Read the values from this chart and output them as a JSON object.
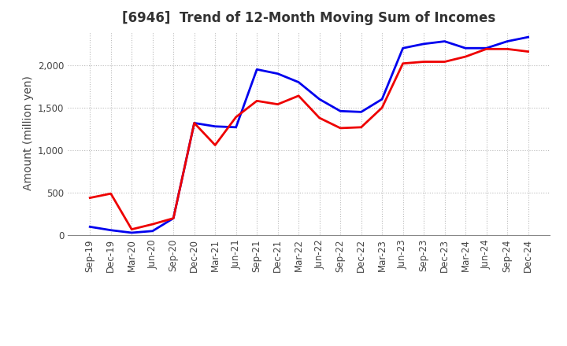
{
  "title": "[6946]  Trend of 12-Month Moving Sum of Incomes",
  "ylabel": "Amount (million yen)",
  "x_labels": [
    "Sep-19",
    "Dec-19",
    "Mar-20",
    "Jun-20",
    "Sep-20",
    "Dec-20",
    "Mar-21",
    "Jun-21",
    "Sep-21",
    "Dec-21",
    "Mar-22",
    "Jun-22",
    "Sep-22",
    "Dec-22",
    "Mar-23",
    "Jun-23",
    "Sep-23",
    "Dec-23",
    "Mar-24",
    "Jun-24",
    "Sep-24",
    "Dec-24"
  ],
  "ordinary_income": [
    100,
    60,
    30,
    50,
    200,
    1320,
    1280,
    1270,
    1950,
    1900,
    1800,
    1600,
    1460,
    1450,
    1600,
    2200,
    2250,
    2280,
    2200,
    2200,
    2280,
    2330
  ],
  "net_income": [
    440,
    490,
    70,
    130,
    200,
    1320,
    1060,
    1390,
    1580,
    1540,
    1640,
    1380,
    1260,
    1270,
    1500,
    2020,
    2040,
    2040,
    2100,
    2190,
    2190,
    2160
  ],
  "ordinary_color": "#0000EE",
  "net_color": "#EE0000",
  "line_width": 2.0,
  "ylim": [
    0,
    2400
  ],
  "yticks": [
    0,
    500,
    1000,
    1500,
    2000
  ],
  "background_color": "#FFFFFF",
  "grid_color": "#BBBBBB",
  "title_fontsize": 12,
  "title_color": "#333333",
  "axis_label_fontsize": 10,
  "tick_fontsize": 8.5,
  "legend_fontsize": 10
}
